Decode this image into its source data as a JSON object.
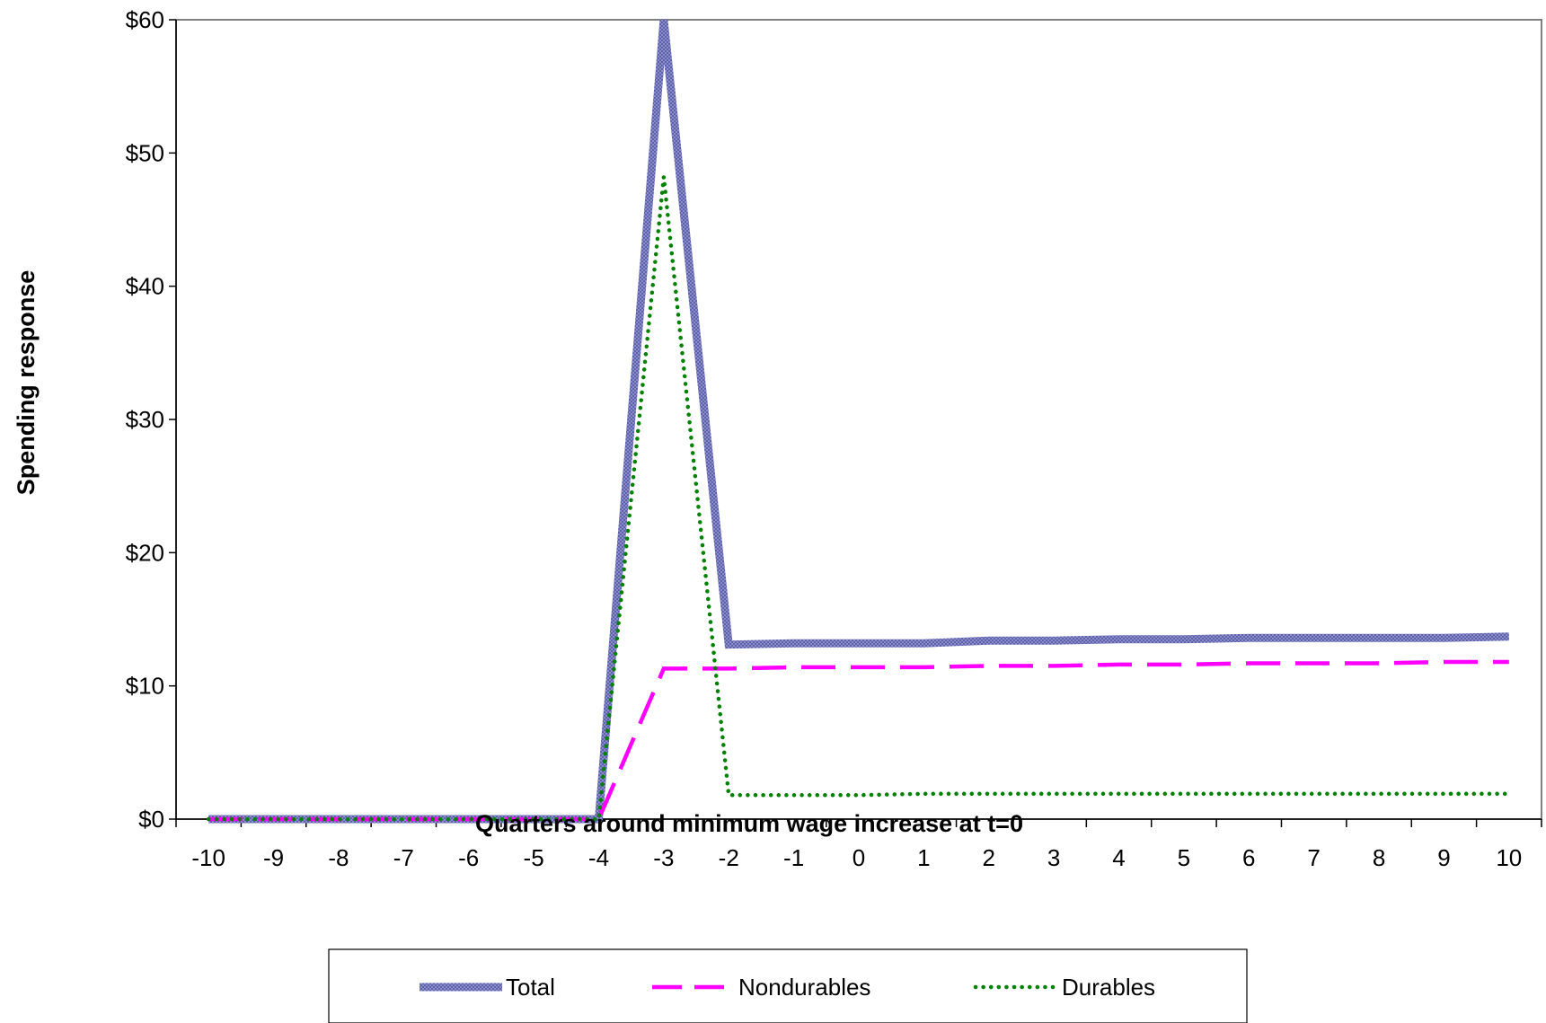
{
  "chart_data": {
    "type": "line",
    "title": "",
    "xlabel": "Quarters around minimum wage increase at t=0",
    "ylabel": "Spending response",
    "x": [
      -10,
      -9,
      -8,
      -7,
      -6,
      -5,
      -4,
      -3,
      -2,
      -1,
      0,
      1,
      2,
      3,
      4,
      5,
      6,
      7,
      8,
      9,
      10
    ],
    "x_tick_labels": [
      "-10",
      "-9",
      "-8",
      "-7",
      "-6",
      "-5",
      "-4",
      "-3",
      "-2",
      "-1",
      "0",
      "1",
      "2",
      "3",
      "4",
      "5",
      "6",
      "7",
      "8",
      "9",
      "10"
    ],
    "ylim": [
      0,
      60
    ],
    "y_ticks": [
      0,
      10,
      20,
      30,
      40,
      50,
      60
    ],
    "y_tick_labels": [
      "$0",
      "$10",
      "$20",
      "$30",
      "$40",
      "$50",
      "$60"
    ],
    "grid": false,
    "legend_position": "bottom",
    "series": [
      {
        "name": "Total",
        "color": "#7b7fc0",
        "style": "solid-thick",
        "values": [
          0,
          0,
          0,
          0,
          0,
          0,
          0,
          60,
          13.1,
          13.2,
          13.2,
          13.2,
          13.4,
          13.4,
          13.5,
          13.5,
          13.6,
          13.6,
          13.6,
          13.6,
          13.7
        ]
      },
      {
        "name": "Nondurables",
        "color": "#ff00ff",
        "style": "dashed",
        "values": [
          0,
          0,
          0,
          0,
          0,
          0,
          0,
          11.3,
          11.3,
          11.4,
          11.4,
          11.4,
          11.5,
          11.5,
          11.6,
          11.6,
          11.7,
          11.7,
          11.7,
          11.8,
          11.8
        ]
      },
      {
        "name": "Durables",
        "color": "#008000",
        "style": "dotted",
        "values": [
          0,
          0,
          0,
          0,
          0,
          0,
          0,
          48.2,
          1.8,
          1.8,
          1.8,
          1.9,
          1.9,
          1.9,
          1.9,
          1.9,
          1.9,
          1.9,
          1.9,
          1.9,
          1.9
        ]
      }
    ]
  }
}
